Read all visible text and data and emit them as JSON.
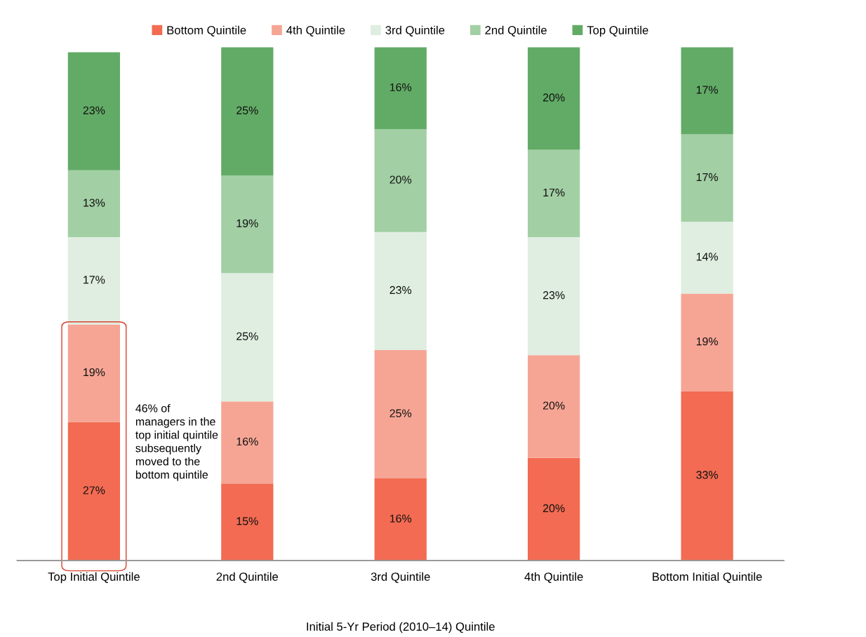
{
  "chart_data": {
    "type": "bar",
    "stacked": true,
    "xlabel": "Initial 5-Yr Period (2010–14) Quintile",
    "categories": [
      "Top Initial Quintile",
      "2nd Quintile",
      "3rd Quintile",
      "4th Quintile",
      "Bottom Initial Quintile"
    ],
    "series": [
      {
        "name": "Bottom Quintile",
        "color": "#f26b52",
        "values": [
          27,
          15,
          16,
          20,
          33
        ],
        "value_labels": [
          "27%",
          "15%",
          "16%",
          "20%",
          "33%"
        ]
      },
      {
        "name": "4th Quintile",
        "color": "#f6a595",
        "values": [
          19,
          16,
          25,
          20,
          19
        ],
        "value_labels": [
          "19%",
          "16%",
          "25%",
          "20%",
          "19%"
        ]
      },
      {
        "name": "3rd Quintile",
        "color": "#dfeee0",
        "values": [
          17,
          25,
          23,
          23,
          14
        ],
        "value_labels": [
          "17%",
          "25%",
          "23%",
          "23%",
          "14%"
        ]
      },
      {
        "name": "2nd Quintile",
        "color": "#a2cfa4",
        "values": [
          13,
          19,
          20,
          17,
          17
        ],
        "value_labels": [
          "13%",
          "19%",
          "20%",
          "17%",
          "17%"
        ]
      },
      {
        "name": "Top Quintile",
        "color": "#62ab66",
        "values": [
          23,
          25,
          16,
          20,
          17
        ],
        "value_labels": [
          "23%",
          "25%",
          "16%",
          "20%",
          "17%"
        ]
      }
    ],
    "legend": "top",
    "grid": false,
    "annotations": [
      "46% of managers in the top initial quintile subsequently moved to the bottom quintile"
    ]
  }
}
